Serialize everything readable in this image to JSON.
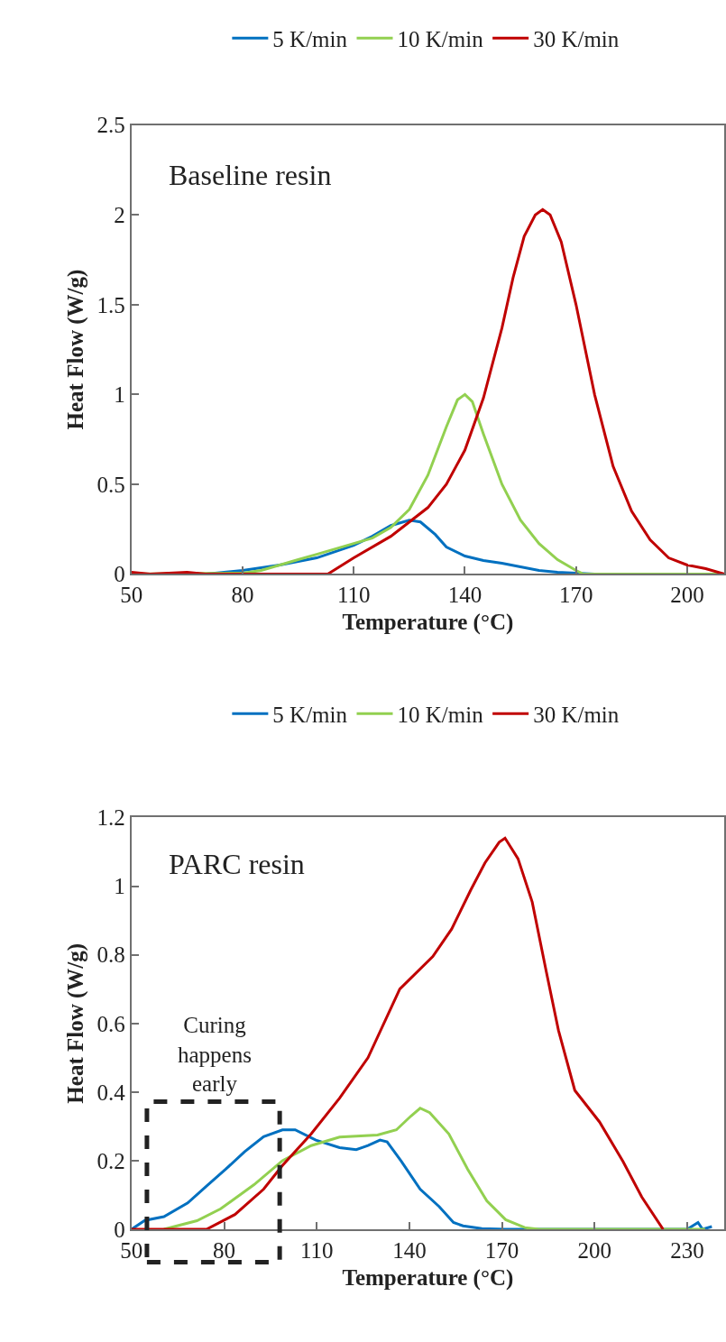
{
  "chart_data": [
    {
      "type": "line",
      "xlabel": "Temperature (°C)",
      "ylabel": "Heat Flow (W/g)",
      "legend": "top",
      "annotations": [
        "Baseline resin"
      ],
      "xlim": [
        50,
        210
      ],
      "xticks": [
        50,
        80,
        110,
        140,
        170,
        200
      ],
      "ylim": [
        0,
        2.5
      ],
      "yticks": [
        0,
        0.5,
        1,
        1.5,
        2,
        2.5
      ],
      "series": [
        {
          "name": "5 K/min",
          "color": "#0070c0",
          "x": [
            50,
            70,
            80,
            90,
            100,
            110,
            115,
            120,
            125,
            128,
            132,
            135,
            140,
            145,
            150,
            155,
            160,
            165,
            170,
            175,
            210
          ],
          "values": [
            0,
            0,
            0.02,
            0.05,
            0.09,
            0.16,
            0.21,
            0.27,
            0.3,
            0.29,
            0.22,
            0.15,
            0.1,
            0.075,
            0.06,
            0.04,
            0.02,
            0.01,
            0.005,
            0,
            0
          ]
        },
        {
          "name": "10 K/min",
          "color": "#92d050",
          "x": [
            50,
            80,
            85,
            90,
            95,
            100,
            105,
            110,
            115,
            120,
            125,
            130,
            135,
            138,
            140,
            142,
            145,
            150,
            155,
            160,
            165,
            170,
            172,
            210
          ],
          "values": [
            0,
            0.005,
            0.02,
            0.05,
            0.08,
            0.11,
            0.14,
            0.17,
            0.2,
            0.26,
            0.36,
            0.55,
            0.82,
            0.97,
            1.0,
            0.96,
            0.78,
            0.5,
            0.3,
            0.17,
            0.08,
            0.02,
            0,
            0
          ]
        },
        {
          "name": "30 K/min",
          "color": "#c00000",
          "x": [
            50,
            55,
            65,
            70,
            100,
            103,
            110,
            120,
            130,
            135,
            140,
            145,
            150,
            153,
            156,
            159,
            161,
            163,
            166,
            170,
            175,
            180,
            185,
            190,
            195,
            200,
            205,
            210
          ],
          "values": [
            0.01,
            0,
            0.01,
            0,
            0,
            0,
            0.09,
            0.21,
            0.37,
            0.5,
            0.69,
            0.98,
            1.37,
            1.65,
            1.88,
            2.0,
            2.03,
            2.0,
            1.85,
            1.5,
            1.0,
            0.6,
            0.35,
            0.19,
            0.09,
            0.05,
            0.03,
            0
          ]
        }
      ]
    },
    {
      "type": "line",
      "xlabel": "Temperature (°C)",
      "ylabel": "Heat Flow (W/g)",
      "legend": "top",
      "annotations": [
        "PARC resin",
        "Curing\nhappens\nearly"
      ],
      "xlim": [
        50,
        242
      ],
      "xticks": [
        50,
        80,
        110,
        140,
        170,
        200,
        230
      ],
      "ylim": [
        0,
        1.2
      ],
      "yticks": [
        0,
        0.2,
        0.4,
        0.6,
        0.8,
        1,
        1.2
      ],
      "series": [
        {
          "name": "5 K/min",
          "color": "#0070c0",
          "x": [
            50,
            54.3,
            60.5,
            68.2,
            74.3,
            80.5,
            86.6,
            92.8,
            98.9,
            103,
            109.7,
            117.4,
            122.8,
            126.6,
            130.5,
            132.8,
            137.4,
            143.5,
            149.7,
            154.3,
            157.4,
            163.5,
            171,
            230,
            233.5,
            235,
            238
          ],
          "values": [
            0,
            0.026,
            0.037,
            0.077,
            0.126,
            0.175,
            0.226,
            0.27,
            0.29,
            0.29,
            0.26,
            0.238,
            0.232,
            0.244,
            0.26,
            0.255,
            0.198,
            0.117,
            0.066,
            0.02,
            0.01,
            0.002,
            0,
            0,
            0.02,
            0,
            0.008
          ]
        },
        {
          "name": "10 K/min",
          "color": "#92d050",
          "x": [
            60.5,
            71.2,
            78.9,
            89.7,
            98.9,
            108.2,
            117.4,
            129.7,
            135.8,
            140.5,
            143.5,
            146.6,
            152.8,
            158.9,
            165.1,
            171.2,
            177.4,
            182,
            235.8
          ],
          "values": [
            0,
            0.025,
            0.06,
            0.13,
            0.2,
            0.244,
            0.269,
            0.275,
            0.29,
            0.33,
            0.353,
            0.34,
            0.278,
            0.175,
            0.083,
            0.028,
            0.005,
            0,
            0
          ]
        },
        {
          "name": "30 K/min",
          "color": "#c00000",
          "x": [
            50,
            74.3,
            83.5,
            92.8,
            98.9,
            108.2,
            117.4,
            126.6,
            136.9,
            147.6,
            153.7,
            159.9,
            164.5,
            169.1,
            171,
            175.2,
            179.8,
            184.4,
            188.3,
            193.6,
            201.6,
            209.2,
            215.3,
            222.2
          ],
          "values": [
            0,
            0,
            0.043,
            0.117,
            0.186,
            0.278,
            0.382,
            0.5,
            0.7,
            0.795,
            0.875,
            0.989,
            1.068,
            1.128,
            1.14,
            1.08,
            0.954,
            0.749,
            0.58,
            0.405,
            0.313,
            0.198,
            0.094,
            0
          ]
        }
      ]
    }
  ]
}
